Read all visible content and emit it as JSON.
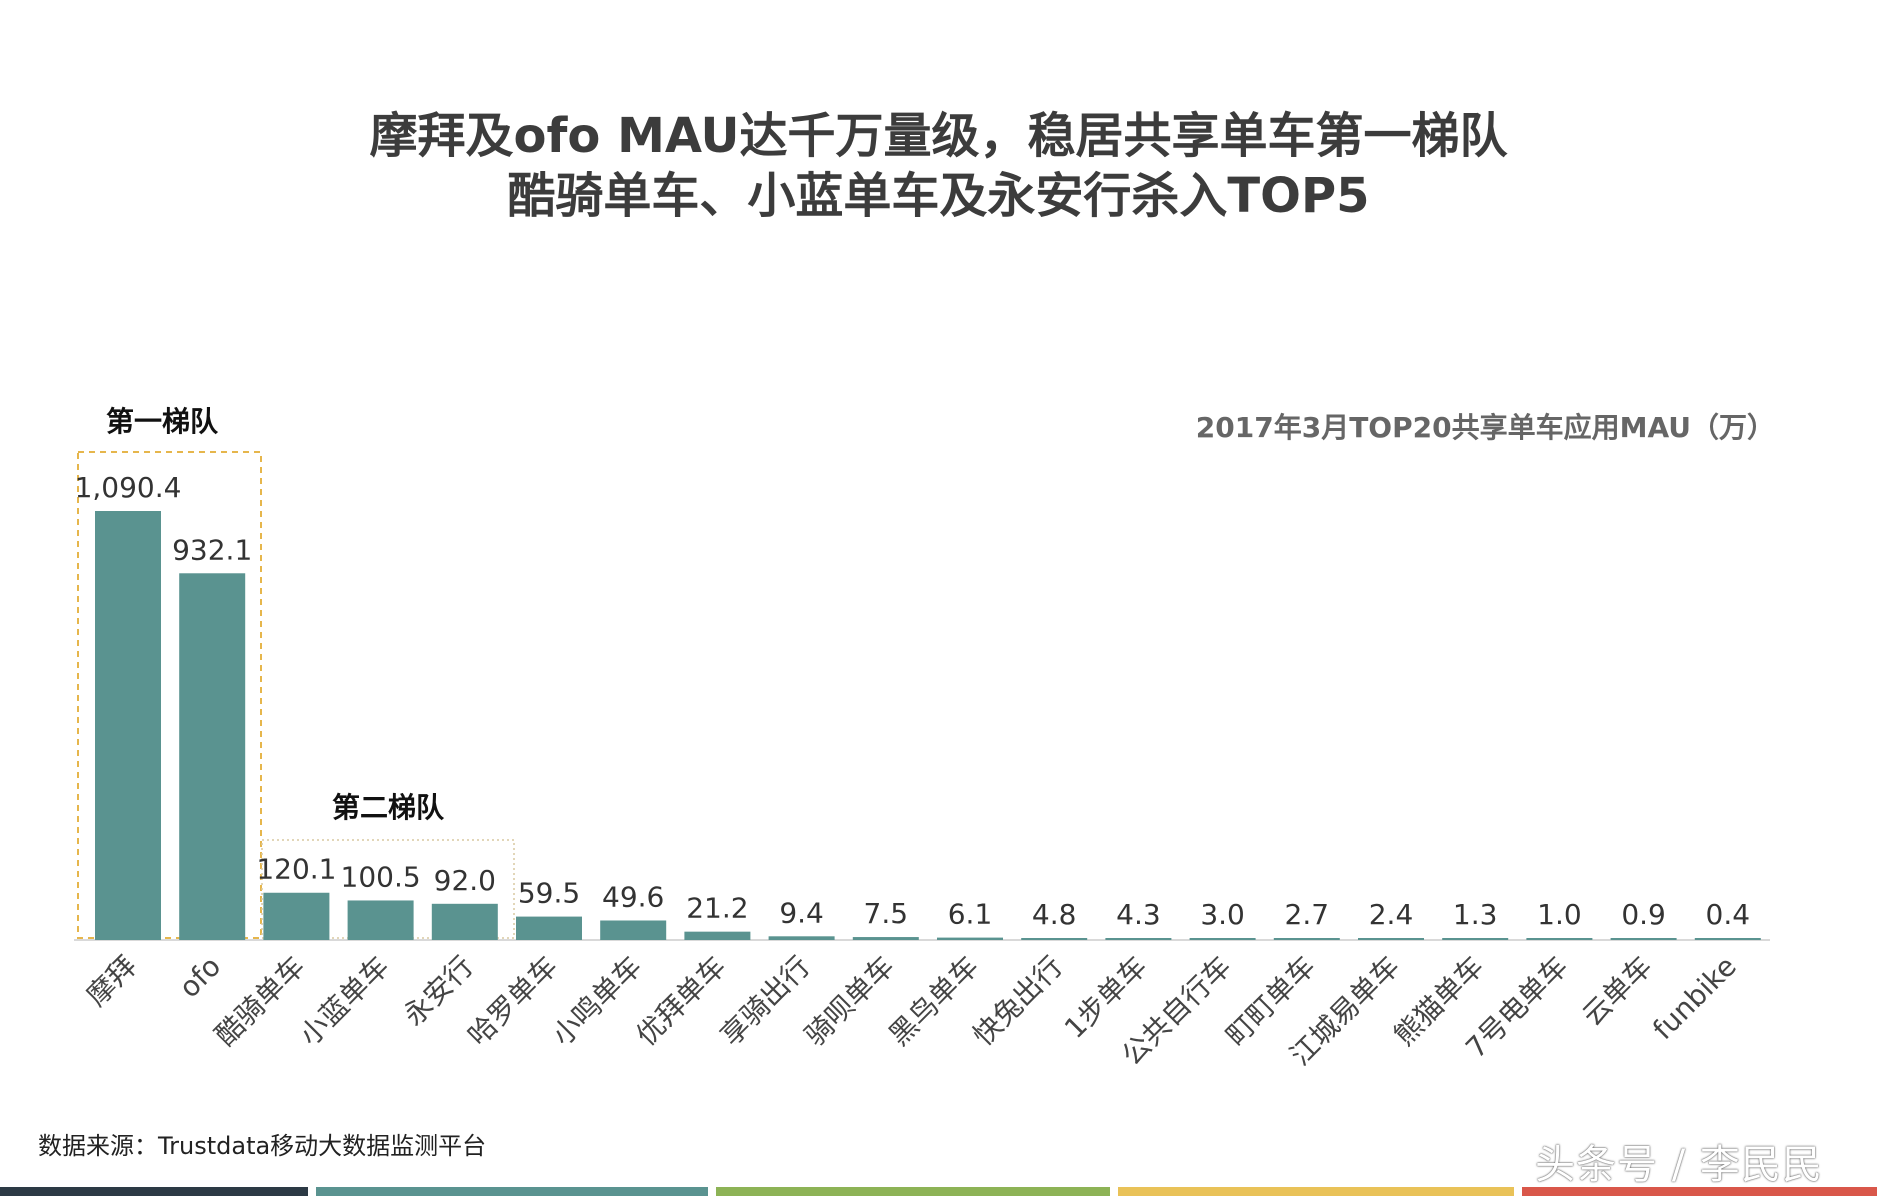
{
  "title": {
    "line1": "摩拜及ofo MAU达千万量级，稳居共享单车第一梯队",
    "line2": "酷骑单车、小蓝单车及永安行杀入TOP5"
  },
  "tiers": {
    "tier1": "第一梯队",
    "tier2": "第二梯队"
  },
  "source": "数据来源：Trustdata移动大数据监测平台",
  "watermark": "头条号 / 李民民",
  "colors": {
    "bar": "#5a9390",
    "tier_box": "#e6b64c",
    "stripe1": "#2c3a45",
    "stripe2": "#5a9390",
    "stripe3": "#8db356",
    "stripe4": "#e9c258",
    "stripe5": "#d9574a"
  },
  "chart_data": {
    "type": "bar",
    "title": "2017年3月TOP20共享单车应用MAU（万）",
    "categories": [
      "摩拜",
      "ofo",
      "酷骑单车",
      "小蓝单车",
      "永安行",
      "哈罗单车",
      "小鸣单车",
      "优拜单车",
      "享骑出行",
      "骑呗单车",
      "黑鸟单车",
      "快兔出行",
      "1步单车",
      "公共自行车",
      "町町单车",
      "江城易单车",
      "熊猫单车",
      "7号电单车",
      "云单车",
      "funbike"
    ],
    "values": [
      1090.4,
      932.1,
      120.1,
      100.5,
      92.0,
      59.5,
      49.6,
      21.2,
      9.4,
      7.5,
      6.1,
      4.8,
      4.3,
      3.0,
      2.7,
      2.4,
      1.3,
      1.0,
      0.9,
      0.4
    ],
    "labels": [
      "1,090.4",
      "932.1",
      "120.1",
      "100.5",
      "92.0",
      "59.5",
      "49.6",
      "21.2",
      "9.4",
      "7.5",
      "6.1",
      "4.8",
      "4.3",
      "3.0",
      "2.7",
      "2.4",
      "1.3",
      "1.0",
      "0.9",
      "0.4"
    ],
    "xlabel": "",
    "ylabel": "",
    "ylim": [
      0,
      1090.4
    ],
    "grid": false,
    "legend": "none"
  }
}
